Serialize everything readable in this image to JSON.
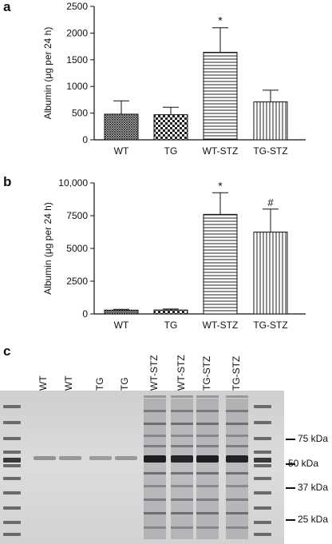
{
  "panel_letters": [
    "a",
    "b",
    "c"
  ],
  "chart_data": [
    {
      "panel": "a",
      "type": "bar",
      "categories": [
        "WT",
        "TG",
        "WT-STZ",
        "TG-STZ"
      ],
      "values": [
        480,
        470,
        1640,
        710
      ],
      "errors": [
        250,
        140,
        460,
        220
      ],
      "annotations": [
        "",
        "",
        "*",
        ""
      ],
      "patterns": [
        "crosshatch-dense",
        "checker",
        "horizontal-lines",
        "vertical-lines"
      ],
      "ylabel": "Albumin (μg per 24 h)",
      "xlabel": "",
      "ylim": [
        0,
        2500
      ],
      "yticks": [
        "0",
        "500",
        "1000",
        "1500",
        "2000",
        "2500"
      ],
      "grid": false
    },
    {
      "panel": "b",
      "type": "bar",
      "categories": [
        "WT",
        "TG",
        "WT-STZ",
        "TG-STZ"
      ],
      "values": [
        290,
        300,
        7600,
        6250
      ],
      "errors": [
        60,
        70,
        1650,
        1750
      ],
      "annotations": [
        "",
        "",
        "*",
        "#"
      ],
      "patterns": [
        "crosshatch-dense",
        "checker",
        "horizontal-lines",
        "vertical-lines"
      ],
      "ylabel": "Albumin (μg per 24 h)",
      "xlabel": "",
      "ylim": [
        0,
        10000
      ],
      "yticks": [
        "0",
        "2500",
        "5000",
        "7500",
        "10,000"
      ],
      "grid": false
    }
  ],
  "gel": {
    "lane_labels": [
      "WT",
      "WT",
      "TG",
      "TG",
      "WT-STZ",
      "WT-STZ",
      "TG-STZ",
      "TG-STZ"
    ],
    "band_strengths": [
      0.25,
      0.22,
      0.2,
      0.22,
      0.95,
      0.9,
      0.95,
      0.92
    ],
    "markers": [
      "75 kDa",
      "50 kDa",
      "37 kDa",
      "25 kDa"
    ]
  }
}
